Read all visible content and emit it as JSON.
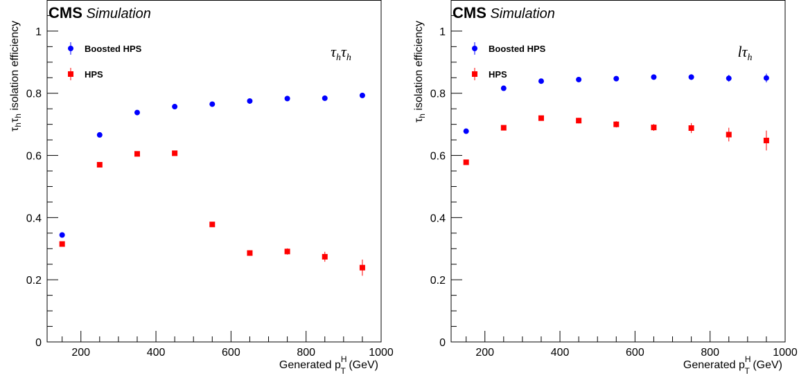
{
  "chart_data": [
    {
      "type": "scatter",
      "experiment": "CMS",
      "experiment_tag": "Simulation",
      "channel_label": {
        "main": "τ",
        "sub": "h",
        "main2": "τ",
        "sub2": "h"
      },
      "xlabel": {
        "main": "Generated p",
        "sup": "H",
        "sub": "T",
        "unit": " (GeV)"
      },
      "ylabel": {
        "tau1": "τ",
        "sub1": "h",
        "tau2": "τ",
        "sub2": "h",
        "rest": " isolation efficiency"
      },
      "xlim": [
        110,
        1000
      ],
      "ylim": [
        0,
        1.1
      ],
      "xticks": [
        200,
        400,
        600,
        800,
        1000
      ],
      "yticks": [
        0,
        0.2,
        0.4,
        0.6,
        0.8,
        1
      ],
      "ytick_labels": [
        "0",
        "0.2",
        "0.4",
        "0.6",
        "0.8",
        "1"
      ],
      "legend_position": "top-left",
      "series": [
        {
          "name": "Boosted HPS",
          "color": "#0000ff",
          "marker": "circle",
          "x": [
            150,
            250,
            350,
            450,
            550,
            650,
            750,
            850,
            950
          ],
          "y": [
            0.344,
            0.666,
            0.738,
            0.757,
            0.765,
            0.775,
            0.783,
            0.784,
            0.793
          ],
          "err": [
            0.004,
            0.004,
            0.004,
            0.004,
            0.004,
            0.005,
            0.005,
            0.006,
            0.007
          ]
        },
        {
          "name": "HPS",
          "color": "#ff0000",
          "marker": "square",
          "x": [
            150,
            250,
            350,
            450,
            550,
            650,
            750,
            850,
            950
          ],
          "y": [
            0.315,
            0.57,
            0.605,
            0.607,
            0.378,
            0.286,
            0.291,
            0.274,
            0.239
          ],
          "err": [
            0.005,
            0.006,
            0.006,
            0.007,
            0.008,
            0.009,
            0.01,
            0.016,
            0.026
          ]
        }
      ]
    },
    {
      "type": "scatter",
      "experiment": "CMS",
      "experiment_tag": "Simulation",
      "channel_label": {
        "main": "l",
        "sub": "",
        "main2": "τ",
        "sub2": "h"
      },
      "xlabel": {
        "main": "Generated p",
        "sup": "H",
        "sub": "T",
        "unit": " (GeV)"
      },
      "ylabel": {
        "tau1": "τ",
        "sub1": "h",
        "tau2": "",
        "sub2": "",
        "rest": " isolation efficiency"
      },
      "xlim": [
        110,
        1000
      ],
      "ylim": [
        0,
        1.1
      ],
      "xticks": [
        200,
        400,
        600,
        800,
        1000
      ],
      "yticks": [
        0,
        0.2,
        0.4,
        0.6,
        0.8,
        1
      ],
      "ytick_labels": [
        "0",
        "0.2",
        "0.4",
        "0.6",
        "0.8",
        "1"
      ],
      "legend_position": "top-left",
      "series": [
        {
          "name": "Boosted HPS",
          "color": "#0000ff",
          "marker": "circle",
          "x": [
            150,
            250,
            350,
            450,
            550,
            650,
            750,
            850,
            950
          ],
          "y": [
            0.678,
            0.816,
            0.839,
            0.844,
            0.847,
            0.852,
            0.852,
            0.848,
            0.849
          ],
          "err": [
            0.006,
            0.006,
            0.006,
            0.006,
            0.007,
            0.008,
            0.009,
            0.011,
            0.014
          ]
        },
        {
          "name": "HPS",
          "color": "#ff0000",
          "marker": "square",
          "x": [
            150,
            250,
            350,
            450,
            550,
            650,
            750,
            850,
            950
          ],
          "y": [
            0.578,
            0.689,
            0.72,
            0.712,
            0.7,
            0.69,
            0.688,
            0.667,
            0.648
          ],
          "err": [
            0.008,
            0.008,
            0.008,
            0.009,
            0.01,
            0.011,
            0.016,
            0.022,
            0.032
          ]
        }
      ]
    }
  ]
}
